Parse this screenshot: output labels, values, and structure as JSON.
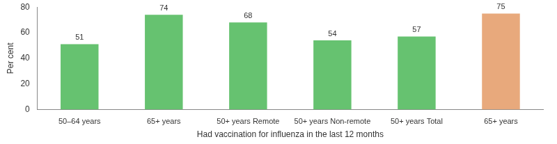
{
  "chart_data": {
    "type": "bar",
    "categories": [
      "50–64 years",
      "65+ years",
      "50+ years Remote",
      "50+ years Non-remote",
      "50+ years Total",
      "65+ years"
    ],
    "values": [
      51,
      74,
      68,
      54,
      57,
      75
    ],
    "colors": [
      "#66c270",
      "#66c270",
      "#66c270",
      "#66c270",
      "#66c270",
      "#e8a97c"
    ],
    "x_label": "Had vaccination for influenza in the last 12 months",
    "y_label": "Per cent",
    "ylim": [
      0,
      80
    ],
    "yticks": [
      0,
      20,
      40,
      60,
      80
    ],
    "grid": false,
    "data_labels": true
  }
}
